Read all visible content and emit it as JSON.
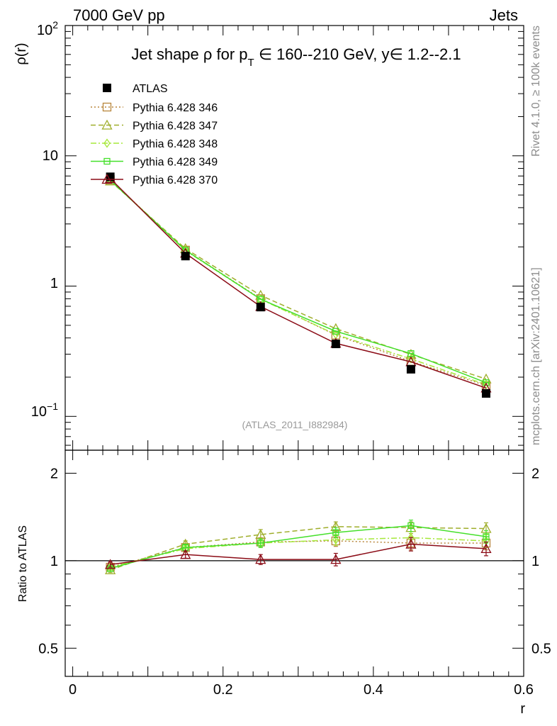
{
  "header": {
    "left": "7000 GeV pp",
    "right": "Jets"
  },
  "side": {
    "rivet": "Rivet 4.1.0, ≥ 100k events",
    "site": "mcplots.cern.ch [arXiv:2401.10621]"
  },
  "colors": {
    "atlas": "#000000",
    "p346": "#b8863b",
    "p347": "#9fae2b",
    "p348": "#a6e83a",
    "p349": "#44e02a",
    "p370": "#8b0b16"
  },
  "chart_data": {
    "type": "line",
    "title_parts": {
      "prefix": "Jet shape ρ for p",
      "sub": "T",
      "suffix": " ∈ 160--210 GeV, y∈ 1.2--2.1"
    },
    "watermark": "(ATLAS_2011_I882984)",
    "xlabel": "r",
    "ylabel": "ρ(r)",
    "ratio_ylabel": "Ratio to ATLAS",
    "xlim": [
      -0.01,
      0.6
    ],
    "ylim": [
      0.055,
      100
    ],
    "ratio_ylim": [
      0.4,
      2.4
    ],
    "xticks": [
      0,
      0.2,
      0.4,
      0.6
    ],
    "xtick_labels": [
      "0",
      "0.2",
      "0.4",
      "0.6"
    ],
    "ytick_labels": {
      "top": "10",
      "top_exp": "2",
      "mid1": "10",
      "mid2": "1",
      "bot": "10",
      "bot_exp": "−1"
    },
    "ratio_yticks": [
      0.5,
      1,
      2
    ],
    "ratio_ytick_labels": [
      "0.5",
      "1",
      "2"
    ],
    "x": [
      0.05,
      0.15,
      0.25,
      0.35,
      0.45,
      0.55
    ],
    "data": {
      "name": "ATLAS",
      "y": [
        6.9,
        1.7,
        0.69,
        0.36,
        0.23,
        0.15
      ],
      "err": [
        0.25,
        0.06,
        0.03,
        0.02,
        0.012,
        0.008
      ]
    },
    "series": [
      {
        "name": "Pythia 6.428 346",
        "key": "p346",
        "marker": "square",
        "dash": "2,3",
        "ratio": [
          0.95,
          1.11,
          1.16,
          1.17,
          1.15,
          1.15
        ],
        "rerr": [
          0.02,
          0.03,
          0.04,
          0.05,
          0.06,
          0.06
        ]
      },
      {
        "name": "Pythia 6.428 347",
        "key": "p347",
        "marker": "triangle",
        "dash": "7,4",
        "ratio": [
          0.93,
          1.14,
          1.23,
          1.31,
          1.3,
          1.29
        ],
        "rerr": [
          0.02,
          0.03,
          0.05,
          0.05,
          0.06,
          0.06
        ]
      },
      {
        "name": "Pythia 6.428 348",
        "key": "p348",
        "marker": "diamond",
        "dash": "8,3,2,3",
        "ratio": [
          0.95,
          1.1,
          1.15,
          1.18,
          1.2,
          1.17
        ],
        "rerr": [
          0.02,
          0.03,
          0.04,
          0.05,
          0.06,
          0.06
        ]
      },
      {
        "name": "Pythia 6.428 349",
        "key": "p349",
        "marker": "cross",
        "dash": "",
        "ratio": [
          0.94,
          1.11,
          1.15,
          1.25,
          1.32,
          1.21
        ],
        "rerr": [
          0.02,
          0.03,
          0.04,
          0.05,
          0.06,
          0.06
        ]
      },
      {
        "name": "Pythia 6.428 370",
        "key": "p370",
        "marker": "triangle",
        "dash": "",
        "ratio": [
          0.97,
          1.05,
          1.01,
          1.01,
          1.14,
          1.1
        ],
        "rerr": [
          0.02,
          0.03,
          0.04,
          0.05,
          0.06,
          0.06
        ]
      }
    ]
  }
}
